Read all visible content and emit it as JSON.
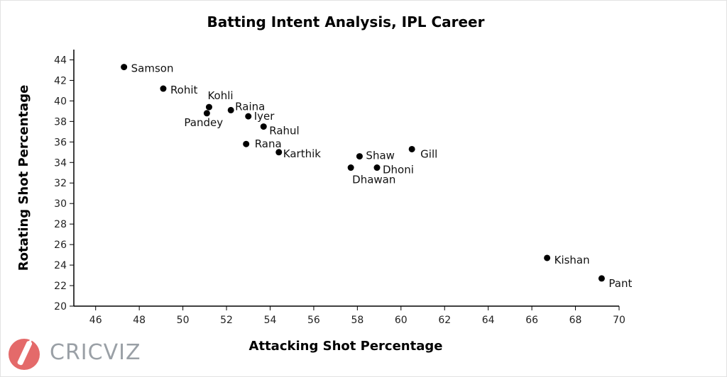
{
  "chart_data": {
    "type": "scatter",
    "title": "Batting Intent Analysis, IPL Career",
    "xlabel": "Attacking Shot Percentage",
    "ylabel": "Rotating Shot Percentage",
    "xlim": [
      45,
      70
    ],
    "ylim": [
      20,
      45
    ],
    "x_ticks": [
      46,
      48,
      50,
      52,
      54,
      56,
      58,
      60,
      62,
      64,
      66,
      68,
      70
    ],
    "y_ticks": [
      20,
      22,
      24,
      26,
      28,
      30,
      32,
      34,
      36,
      38,
      40,
      42,
      44
    ],
    "grid": false,
    "points": [
      {
        "label": "Samson",
        "x": 47.3,
        "y": 43.3
      },
      {
        "label": "Rohit",
        "x": 49.1,
        "y": 41.2
      },
      {
        "label": "Kohli",
        "x": 51.2,
        "y": 39.4
      },
      {
        "label": "Pandey",
        "x": 51.1,
        "y": 38.8
      },
      {
        "label": "Raina",
        "x": 52.2,
        "y": 39.1
      },
      {
        "label": "Iyer",
        "x": 53.0,
        "y": 38.5
      },
      {
        "label": "Rahul",
        "x": 53.7,
        "y": 37.5
      },
      {
        "label": "Rana",
        "x": 52.9,
        "y": 35.8
      },
      {
        "label": "Karthik",
        "x": 54.4,
        "y": 35.0
      },
      {
        "label": "Shaw",
        "x": 58.1,
        "y": 34.6
      },
      {
        "label": "Gill",
        "x": 60.5,
        "y": 35.3
      },
      {
        "label": "Dhawan",
        "x": 57.7,
        "y": 33.5
      },
      {
        "label": "Dhoni",
        "x": 58.9,
        "y": 33.5
      },
      {
        "label": "Kishan",
        "x": 66.7,
        "y": 24.7
      },
      {
        "label": "Pant",
        "x": 69.2,
        "y": 22.7
      }
    ]
  },
  "branding": {
    "logo_text_cric": "CRIC",
    "logo_text_viz": "VIZ",
    "accent": "#e46a6a"
  }
}
